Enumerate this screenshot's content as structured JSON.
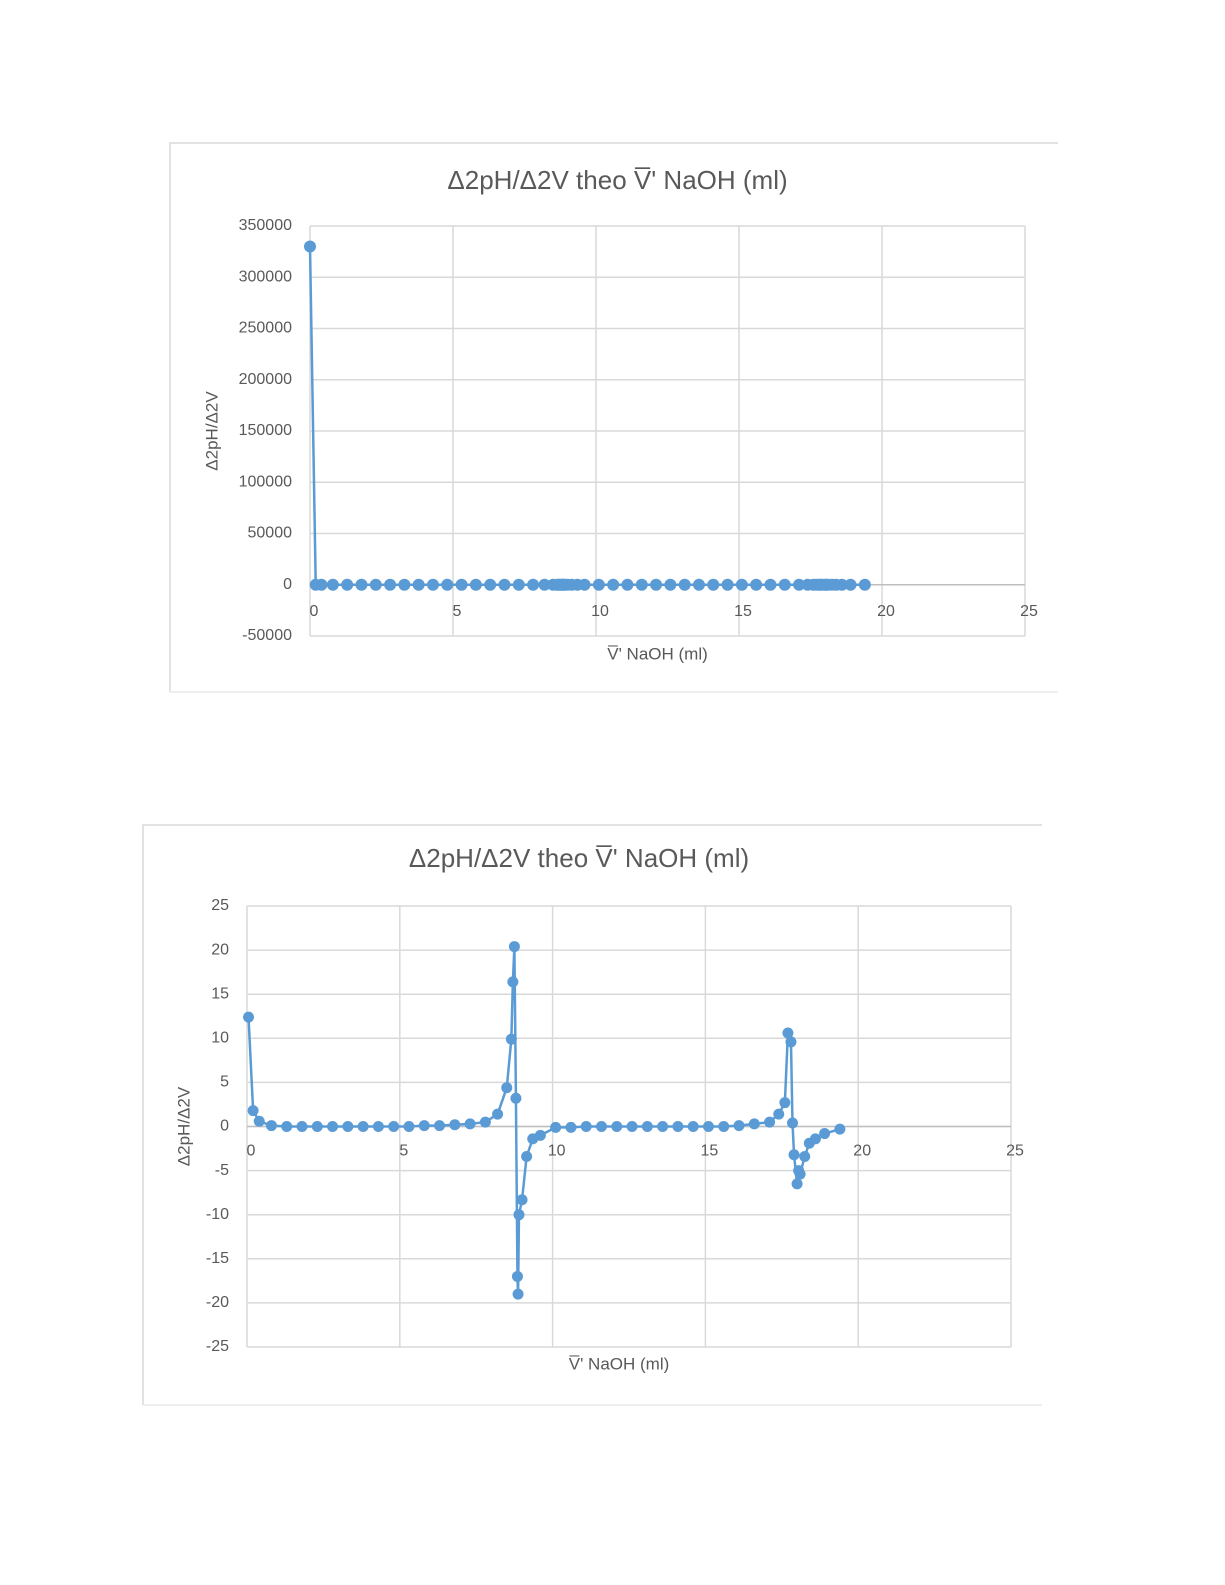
{
  "chart_data": [
    {
      "type": "line",
      "title": "Δ2pH/Δ2V theo V̅' NaOH (ml)",
      "x_label": "V̅' NaOH (ml)",
      "y_label": "Δ2pH/Δ2V",
      "xlim": [
        0,
        25
      ],
      "xticks": [
        0,
        5,
        10,
        15,
        20,
        25
      ],
      "ylim": [
        -50000,
        350000
      ],
      "yticks": [
        -50000,
        0,
        50000,
        100000,
        150000,
        200000,
        250000,
        300000,
        350000
      ],
      "grid": true,
      "marker": "circle",
      "x": [
        0,
        0.2,
        0.4,
        0.8,
        1.3,
        1.8,
        2.3,
        2.8,
        3.3,
        3.8,
        4.3,
        4.8,
        5.3,
        5.8,
        6.3,
        6.8,
        7.3,
        7.8,
        8.2,
        8.5,
        8.65,
        8.7,
        8.75,
        8.8,
        8.85,
        8.87,
        8.9,
        9.0,
        9.15,
        9.35,
        9.6,
        10.1,
        10.6,
        11.1,
        11.6,
        12.1,
        12.6,
        13.1,
        13.6,
        14.1,
        14.6,
        15.1,
        15.6,
        16.1,
        16.6,
        17.1,
        17.4,
        17.6,
        17.7,
        17.8,
        17.85,
        17.9,
        18.0,
        18.05,
        18.1,
        18.25,
        18.4,
        18.6,
        18.9,
        19.4
      ],
      "series": [
        {
          "name": "Δ2pH/Δ2V",
          "color": "#5b9bd5",
          "values": [
            330000,
            1.8,
            0.6,
            0.1,
            0,
            0,
            0,
            0,
            0,
            0,
            0,
            0,
            0,
            0.1,
            0.1,
            0.2,
            0.3,
            0.5,
            1.4,
            4.4,
            9.9,
            16.4,
            20.4,
            3.2,
            -17,
            -19,
            -10,
            -8.3,
            -3.4,
            -1.4,
            -1,
            -0.1,
            -0.1,
            0,
            0,
            0,
            0,
            0,
            0,
            0,
            0,
            0,
            0,
            0.1,
            0.3,
            0.5,
            1.4,
            2.7,
            10.6,
            9.6,
            0.4,
            -3.2,
            -6.5,
            -5,
            -5.4,
            -3.4,
            -1.9,
            -1.4,
            -0.8,
            -0.3
          ]
        }
      ]
    },
    {
      "type": "line",
      "title": "Δ2pH/Δ2V theo V̅' NaOH (ml)",
      "x_label": "V̅' NaOH (ml)",
      "y_label": "Δ2pH/Δ2V",
      "xlim": [
        0,
        25
      ],
      "xticks": [
        0,
        5,
        10,
        15,
        20,
        25
      ],
      "ylim": [
        -25,
        25
      ],
      "yticks": [
        -25,
        -20,
        -15,
        -10,
        -5,
        0,
        5,
        10,
        15,
        20,
        25
      ],
      "grid": true,
      "marker": "circle",
      "x": [
        0.05,
        0.2,
        0.4,
        0.8,
        1.3,
        1.8,
        2.3,
        2.8,
        3.3,
        3.8,
        4.3,
        4.8,
        5.3,
        5.8,
        6.3,
        6.8,
        7.3,
        7.8,
        8.2,
        8.5,
        8.65,
        8.7,
        8.75,
        8.8,
        8.85,
        8.87,
        8.9,
        9.0,
        9.15,
        9.35,
        9.6,
        10.1,
        10.6,
        11.1,
        11.6,
        12.1,
        12.6,
        13.1,
        13.6,
        14.1,
        14.6,
        15.1,
        15.6,
        16.1,
        16.6,
        17.1,
        17.4,
        17.6,
        17.7,
        17.8,
        17.85,
        17.9,
        18.0,
        18.05,
        18.1,
        18.25,
        18.4,
        18.6,
        18.9,
        19.4
      ],
      "series": [
        {
          "name": "Δ2pH/Δ2V",
          "color": "#5b9bd5",
          "values": [
            12.4,
            1.8,
            0.6,
            0.1,
            0,
            0,
            0,
            0,
            0,
            0,
            0,
            0,
            0,
            0.1,
            0.1,
            0.2,
            0.3,
            0.5,
            1.4,
            4.4,
            9.9,
            16.4,
            20.4,
            3.2,
            -17,
            -19,
            -10,
            -8.3,
            -3.4,
            -1.4,
            -1,
            -0.1,
            -0.1,
            0,
            0,
            0,
            0,
            0,
            0,
            0,
            0,
            0,
            0,
            0.1,
            0.3,
            0.5,
            1.4,
            2.7,
            10.6,
            9.6,
            0.4,
            -3.2,
            -6.5,
            -5,
            -5.4,
            -3.4,
            -1.9,
            -1.4,
            -0.8,
            -0.3
          ]
        }
      ]
    }
  ]
}
